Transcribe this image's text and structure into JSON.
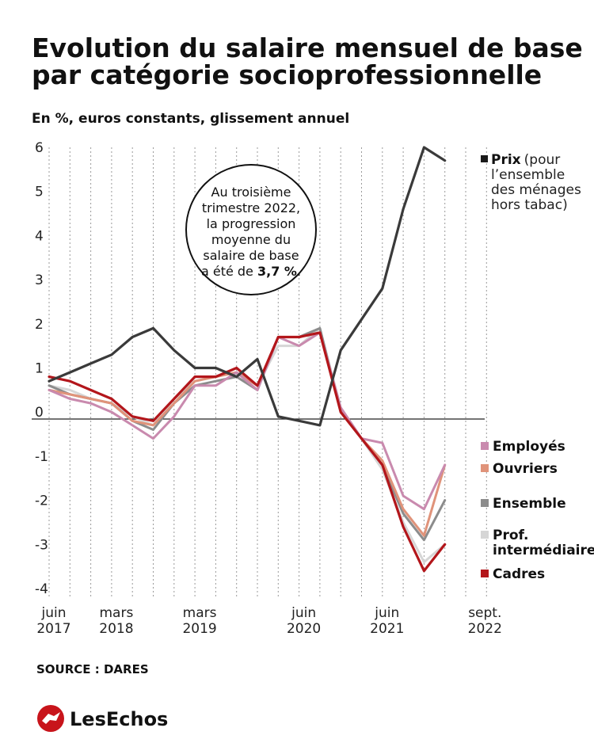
{
  "chart_data": {
    "type": "line",
    "title": "Evolution du salaire mensuel de base par catégorie socioprofessionnelle",
    "title_lines": [
      "Evolution du salaire mensuel de base",
      "par catégorie socioprofessionnelle"
    ],
    "subtitle": "En %, euros constants, glissement annuel",
    "yticks": [
      "6",
      "5",
      "4",
      "3",
      "2",
      "1",
      "0",
      "-1",
      "-2",
      "-3",
      "-4"
    ],
    "ylim": [
      -4,
      6
    ],
    "x_tick_labels": [
      {
        "month": "juin",
        "year": "2017"
      },
      {
        "month": "mars",
        "year": "2018"
      },
      {
        "month": "mars",
        "year": "2019"
      },
      {
        "month": "juin",
        "year": "2020"
      },
      {
        "month": "juin",
        "year": "2021"
      },
      {
        "month": "sept.",
        "year": "2022"
      }
    ],
    "x": [
      "2017-06",
      "2017-09",
      "2017-12",
      "2018-03",
      "2018-06",
      "2018-09",
      "2018-12",
      "2019-03",
      "2019-06",
      "2019-09",
      "2019-12",
      "2020-03",
      "2020-06",
      "2020-09",
      "2020-12",
      "2021-03",
      "2021-06",
      "2021-09",
      "2021-12",
      "2022-03",
      "2022-06",
      "2022-09"
    ],
    "series": [
      {
        "name": "Prix",
        "color": "#3a3a3a",
        "values": [
          0.7,
          0.9,
          1.1,
          1.3,
          1.7,
          1.9,
          1.4,
          1.0,
          1.0,
          0.8,
          1.2,
          -0.1,
          -0.2,
          -0.3,
          1.4,
          2.1,
          2.8,
          4.6,
          6.0,
          5.7,
          null,
          null
        ]
      },
      {
        "name": "Employés",
        "color": "#c98aae",
        "values": [
          0.5,
          0.3,
          0.2,
          0.0,
          -0.3,
          -0.6,
          -0.1,
          0.6,
          0.6,
          0.9,
          0.5,
          1.7,
          1.5,
          1.8,
          0.1,
          -0.6,
          -0.7,
          -1.9,
          -2.2,
          -1.2,
          null,
          null
        ]
      },
      {
        "name": "Ouvriers",
        "color": "#e0937a",
        "values": [
          0.5,
          0.4,
          0.3,
          0.2,
          -0.2,
          -0.3,
          0.2,
          0.7,
          0.8,
          0.9,
          0.6,
          1.7,
          1.7,
          1.8,
          0.0,
          -0.6,
          -1.1,
          -2.2,
          -2.8,
          -1.2,
          null,
          null
        ]
      },
      {
        "name": "Ensemble",
        "color": "#8c8c8c",
        "values": [
          0.6,
          0.4,
          0.3,
          0.2,
          -0.2,
          -0.4,
          0.2,
          0.6,
          0.7,
          0.8,
          0.5,
          1.7,
          1.7,
          1.9,
          0.0,
          -0.6,
          -1.2,
          -2.3,
          -2.9,
          -2.0,
          null,
          null
        ]
      },
      {
        "name": "Prof. intermédiaires",
        "color": "#d6d6d6",
        "values": [
          0.6,
          0.5,
          0.3,
          0.2,
          -0.1,
          -0.3,
          0.3,
          0.7,
          0.8,
          0.9,
          0.6,
          1.5,
          1.5,
          1.9,
          0.1,
          -0.6,
          -1.3,
          -2.5,
          -3.4,
          -3.0,
          null,
          null
        ]
      },
      {
        "name": "Cadres",
        "color": "#b3161b",
        "values": [
          0.8,
          0.7,
          0.5,
          0.3,
          -0.1,
          -0.2,
          0.3,
          0.8,
          0.8,
          1.0,
          0.6,
          1.7,
          1.7,
          1.8,
          0.0,
          -0.6,
          -1.2,
          -2.6,
          -3.6,
          -3.0,
          null,
          null
        ]
      }
    ],
    "legend_lines": {
      "prix_note": [
        "(pour",
        "l’ensemble",
        "des ménages",
        "hors tabac)"
      ],
      "prof_line1": "Prof.",
      "prof_line2": "intermédiaires"
    },
    "annotation": {
      "lines": [
        "Au troisième",
        "trimestre 2022,",
        "la progression",
        "moyenne du",
        "salaire de base"
      ],
      "last_line_prefix": "a été de ",
      "last_line_value": "3,7 %",
      "last_line_suffix": "."
    },
    "legend": "right",
    "grid": "vertical-dotted"
  },
  "source": "SOURCE : DARES",
  "brand": "LesEchos",
  "colors": {
    "brand_red": "#c8141b"
  }
}
